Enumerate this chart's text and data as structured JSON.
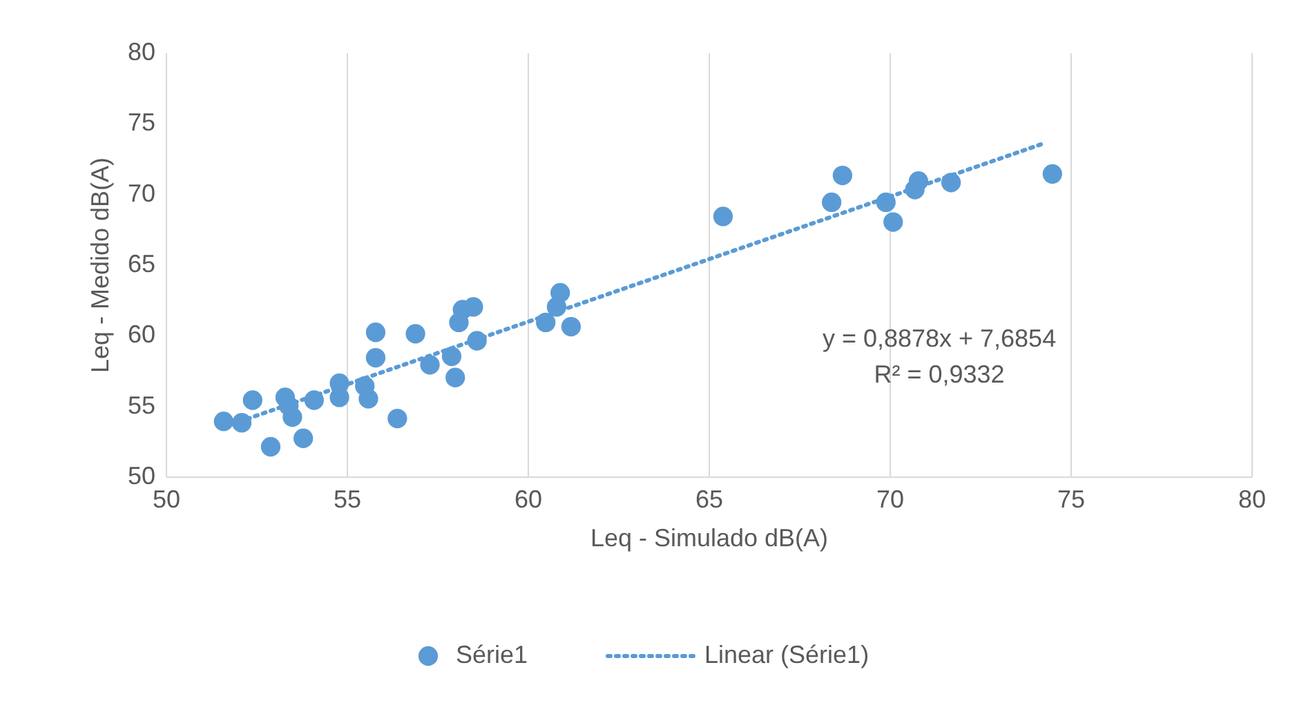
{
  "chart_data": {
    "type": "scatter",
    "xlabel": "Leq - Simulado dB(A)",
    "ylabel": "Leq - Medido dB(A)",
    "xlim": [
      50,
      80
    ],
    "xticks": [
      50,
      55,
      60,
      65,
      70,
      75,
      80
    ],
    "ylim": [
      50,
      80
    ],
    "yticks": [
      50,
      55,
      60,
      65,
      70,
      75,
      80
    ],
    "grid": "x",
    "legend": "bottom",
    "series": [
      {
        "name": "Série1",
        "color": "#5b9bd5",
        "marker": "circle",
        "x": [
          51.6,
          52.1,
          52.4,
          52.9,
          53.3,
          53.4,
          53.5,
          53.8,
          54.1,
          54.8,
          54.8,
          55.5,
          55.6,
          55.8,
          55.8,
          56.4,
          56.9,
          57.3,
          57.9,
          58.0,
          58.1,
          58.2,
          58.5,
          58.6,
          60.5,
          60.8,
          60.9,
          61.2,
          65.4,
          68.4,
          68.7,
          69.9,
          70.1,
          70.7,
          70.8,
          71.7,
          74.5
        ],
        "values": [
          53.9,
          53.8,
          55.4,
          52.1,
          55.6,
          55.0,
          54.2,
          52.7,
          55.4,
          56.6,
          55.6,
          56.4,
          55.5,
          60.2,
          58.4,
          54.1,
          60.1,
          57.9,
          58.5,
          57.0,
          60.9,
          61.8,
          62.0,
          59.6,
          60.9,
          62.0,
          63.0,
          60.6,
          68.4,
          69.4,
          71.3,
          69.4,
          68.0,
          70.3,
          70.9,
          70.8,
          71.4
        ]
      },
      {
        "name": "Linear (Série1)",
        "color": "#5b9bd5",
        "type": "line",
        "line_style": "dotted",
        "x": [
          51.6,
          74.3
        ],
        "values": [
          53.5,
          73.6
        ]
      }
    ],
    "annotations": [
      "y = 0,8878x + 7,6854",
      "R² = 0,9332"
    ]
  }
}
